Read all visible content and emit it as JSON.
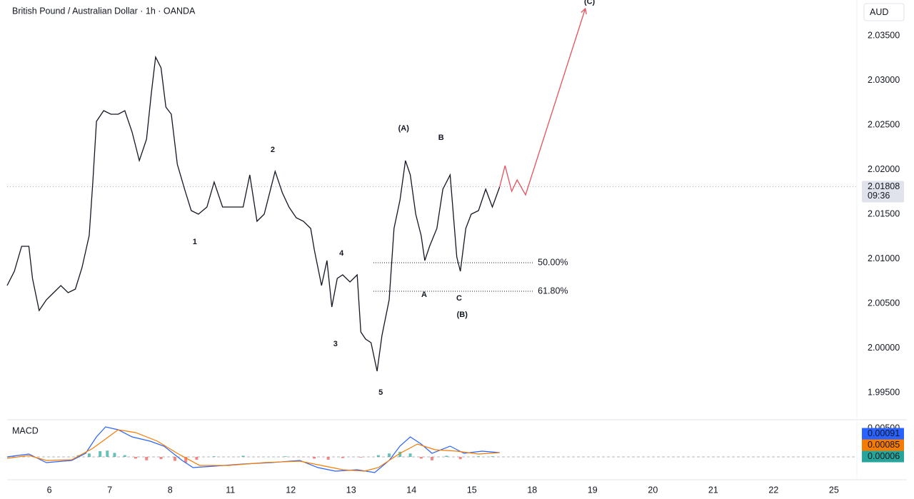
{
  "chart_data": [
    {
      "type": "line",
      "title": "British Pound / Australian Dollar · 1h · OANDA",
      "currency": "AUD",
      "color": "#131722",
      "xlim": [
        -0.7,
        13.38
      ],
      "ylim": [
        1.99196,
        2.039
      ],
      "yticks": [
        {
          "value": 1.995,
          "label": "1.99500"
        },
        {
          "value": 2.0,
          "label": "2.00000"
        },
        {
          "value": 2.005,
          "label": "2.00500"
        },
        {
          "value": 2.01,
          "label": "2.01000"
        },
        {
          "value": 2.015,
          "label": "2.01500"
        },
        {
          "value": 2.02,
          "label": "2.02000"
        },
        {
          "value": 2.025,
          "label": "2.02500"
        },
        {
          "value": 2.03,
          "label": "2.03000"
        },
        {
          "value": 2.035,
          "label": "2.03500"
        }
      ],
      "x": [
        -0.7,
        -0.58,
        -0.46,
        -0.34,
        -0.28,
        -0.17,
        -0.05,
        0.07,
        0.19,
        0.31,
        0.43,
        0.54,
        0.66,
        0.72,
        0.78,
        0.9,
        1.02,
        1.14,
        1.25,
        1.37,
        1.49,
        1.61,
        1.69,
        1.76,
        1.85,
        1.93,
        2.02,
        2.12,
        2.24,
        2.35,
        2.47,
        2.61,
        2.73,
        2.87,
        3.03,
        3.21,
        3.32,
        3.44,
        3.56,
        3.74,
        3.86,
        3.97,
        4.09,
        4.21,
        4.33,
        4.39,
        4.51,
        4.6,
        4.68,
        4.77,
        4.86,
        4.98,
        5.1,
        5.16,
        5.24,
        5.33,
        5.43,
        5.51,
        5.63,
        5.71,
        5.81,
        5.9,
        5.98,
        6.07,
        6.16,
        6.22,
        6.3,
        6.42,
        6.52,
        6.64,
        6.75,
        6.81,
        6.9,
        6.99,
        7.11,
        7.23,
        7.34,
        7.46
      ],
      "values": [
        2.007,
        2.0086,
        2.0114,
        2.0114,
        2.0078,
        2.0042,
        2.0054,
        2.0062,
        2.007,
        2.0062,
        2.0066,
        2.009,
        2.0126,
        2.0186,
        2.0254,
        2.0266,
        2.0262,
        2.0262,
        2.0266,
        2.0242,
        2.021,
        2.0234,
        2.0286,
        2.0326,
        2.0314,
        2.027,
        2.0262,
        2.0206,
        2.0178,
        2.0154,
        2.015,
        2.0158,
        2.0186,
        2.0158,
        2.0158,
        2.0158,
        2.0194,
        2.0142,
        2.015,
        2.0198,
        2.0174,
        2.0158,
        2.0146,
        2.0142,
        2.0134,
        2.011,
        2.007,
        2.0098,
        2.0046,
        2.0078,
        2.0082,
        2.0074,
        2.0082,
        2.0018,
        2.001,
        2.0006,
        1.9974,
        2.0014,
        2.0054,
        2.0134,
        2.0166,
        2.021,
        2.0194,
        2.015,
        2.0126,
        2.0098,
        2.0114,
        2.0134,
        2.0178,
        2.0194,
        2.0102,
        2.0086,
        2.0134,
        2.015,
        2.0154,
        2.0178,
        2.0158,
        2.01804
      ],
      "projection": {
        "color": "#e8505b",
        "x": [
          7.46,
          7.55,
          7.66,
          7.75,
          7.89,
          8.88
        ],
        "values": [
          2.01804,
          2.02044,
          2.01756,
          2.01884,
          2.01716,
          2.03804
        ]
      },
      "last_price": {
        "value": 2.01808,
        "label": "2.01808"
      },
      "countdown": "09:36",
      "fib_levels": [
        {
          "value": 2.00956,
          "label": "50.00%",
          "x": [
            5.37,
            8.01
          ]
        },
        {
          "value": 2.00636,
          "label": "61.80%",
          "x": [
            5.37,
            8.01
          ]
        }
      ],
      "annotations": [
        {
          "text": "(A)",
          "x": 5.87,
          "y": 2.0246,
          "color": "#131722"
        },
        {
          "text": "B",
          "x": 6.49,
          "y": 2.02356,
          "color": "#131722"
        },
        {
          "text": "(C)",
          "x": 8.95,
          "y": 2.0388,
          "color": "#131722"
        },
        {
          "text": "1",
          "x": 2.41,
          "y": 2.01188,
          "color": "#3d6bd6"
        },
        {
          "text": "2",
          "x": 3.7,
          "y": 2.0222,
          "color": "#3d6bd6"
        },
        {
          "text": "3",
          "x": 4.74,
          "y": 2.00044,
          "color": "#3d6bd6"
        },
        {
          "text": "4",
          "x": 4.84,
          "y": 2.0106,
          "color": "#3d6bd6"
        },
        {
          "text": "5",
          "x": 5.49,
          "y": 1.995,
          "color": "#3d6bd6"
        },
        {
          "text": "A",
          "x": 6.21,
          "y": 2.00596,
          "color": "#131722"
        },
        {
          "text": "C",
          "x": 6.79,
          "y": 2.00556,
          "color": "#131722"
        },
        {
          "text": "(B)",
          "x": 6.84,
          "y": 2.00372,
          "color": "#131722"
        }
      ]
    },
    {
      "type": "line",
      "title": "MACD",
      "xlim": [
        -0.7,
        13.38
      ],
      "ylim": [
        -0.004,
        0.0065
      ],
      "yticks": [
        {
          "value": 0.005,
          "label": "0.00500"
        }
      ],
      "xticks": [
        {
          "value": 0,
          "label": "6"
        },
        {
          "value": 1,
          "label": "7"
        },
        {
          "value": 2,
          "label": "8"
        },
        {
          "value": 3,
          "label": "11"
        },
        {
          "value": 4,
          "label": "12"
        },
        {
          "value": 5,
          "label": "13"
        },
        {
          "value": 6,
          "label": "14"
        },
        {
          "value": 7,
          "label": "15"
        },
        {
          "value": 8,
          "label": "18"
        },
        {
          "value": 9,
          "label": "19"
        },
        {
          "value": 10,
          "label": "20"
        },
        {
          "value": 11,
          "label": "21"
        },
        {
          "value": 12,
          "label": "22"
        },
        {
          "value": 13,
          "label": "25"
        }
      ],
      "series": [
        {
          "color": "#2962ff",
          "x": [
            -0.7,
            -0.34,
            -0.05,
            0.37,
            0.6,
            0.78,
            0.93,
            1.14,
            1.37,
            1.67,
            1.9,
            2.2,
            2.38,
            2.73,
            3.21,
            3.68,
            4.15,
            4.45,
            4.74,
            5.1,
            5.39,
            5.63,
            5.81,
            5.98,
            6.16,
            6.34,
            6.64,
            6.87,
            7.17,
            7.46
          ],
          "values": [
            0,
            0.0005,
            -0.001,
            -0.00063,
            0.00063,
            0.0035,
            0.00525,
            0.00475,
            0.0035,
            0.00275,
            0.00188,
            -0.00063,
            -0.00188,
            -0.00163,
            -0.00125,
            -0.001,
            -0.00063,
            -0.00188,
            -0.0025,
            -0.00225,
            -0.00275,
            -0.00063,
            0.0019,
            0.0035,
            0.00225,
            0.00063,
            0.00188,
            0.00063,
            0.001,
            0.00075
          ]
        },
        {
          "color": "#f57c00",
          "x": [
            -0.7,
            -0.34,
            -0.05,
            0.37,
            0.72,
            1.14,
            1.43,
            1.79,
            2.14,
            2.49,
            2.97,
            3.56,
            4.15,
            4.51,
            4.86,
            5.22,
            5.45,
            5.81,
            6.1,
            6.39,
            6.75,
            7.11,
            7.46
          ],
          "values": [
            -0.00025,
            0.00025,
            -0.00063,
            -0.0005,
            0.0015,
            0.00475,
            0.00425,
            0.00275,
            0.0005,
            -0.0015,
            -0.0015,
            -0.001,
            -0.00075,
            -0.0015,
            -0.00225,
            -0.0025,
            -0.00188,
            0.00063,
            0.00225,
            0.00125,
            0.001,
            0.0005,
            0.00075
          ]
        }
      ],
      "histogram": {
        "positive_color": "#26a69a",
        "negative_color": "#ef5350",
        "x": [
          0.48,
          0.66,
          0.84,
          0.96,
          1.08,
          1.25,
          1.43,
          1.61,
          1.85,
          2.08,
          2.26,
          2.44,
          2.73,
          3.21,
          3.91,
          4.39,
          4.62,
          4.86,
          5.16,
          5.45,
          5.63,
          5.81,
          5.98,
          6.16,
          6.34,
          6.58,
          6.81,
          7.11,
          7.34
        ],
        "values": [
          0.0003,
          0.0006,
          0.001,
          0.0011,
          0.0007,
          0.0003,
          -0.0003,
          -0.0006,
          -0.0004,
          -0.0007,
          -0.001,
          -0.0005,
          0.0001,
          0.0002,
          0.0001,
          -0.0003,
          -0.0005,
          -0.0002,
          -0.0001,
          0.0003,
          0.0006,
          0.0009,
          0.0006,
          -0.0003,
          -0.0006,
          0.0002,
          -0.0004,
          0.0001,
          0.0001
        ]
      },
      "last_values": [
        {
          "value": 0.00091,
          "label": "0.00091",
          "color": "#2962ff"
        },
        {
          "value": 0.00085,
          "label": "0.00085",
          "color": "#f57c00"
        },
        {
          "value": 6e-05,
          "label": "0.00006",
          "color": "#26a69a"
        }
      ]
    }
  ]
}
